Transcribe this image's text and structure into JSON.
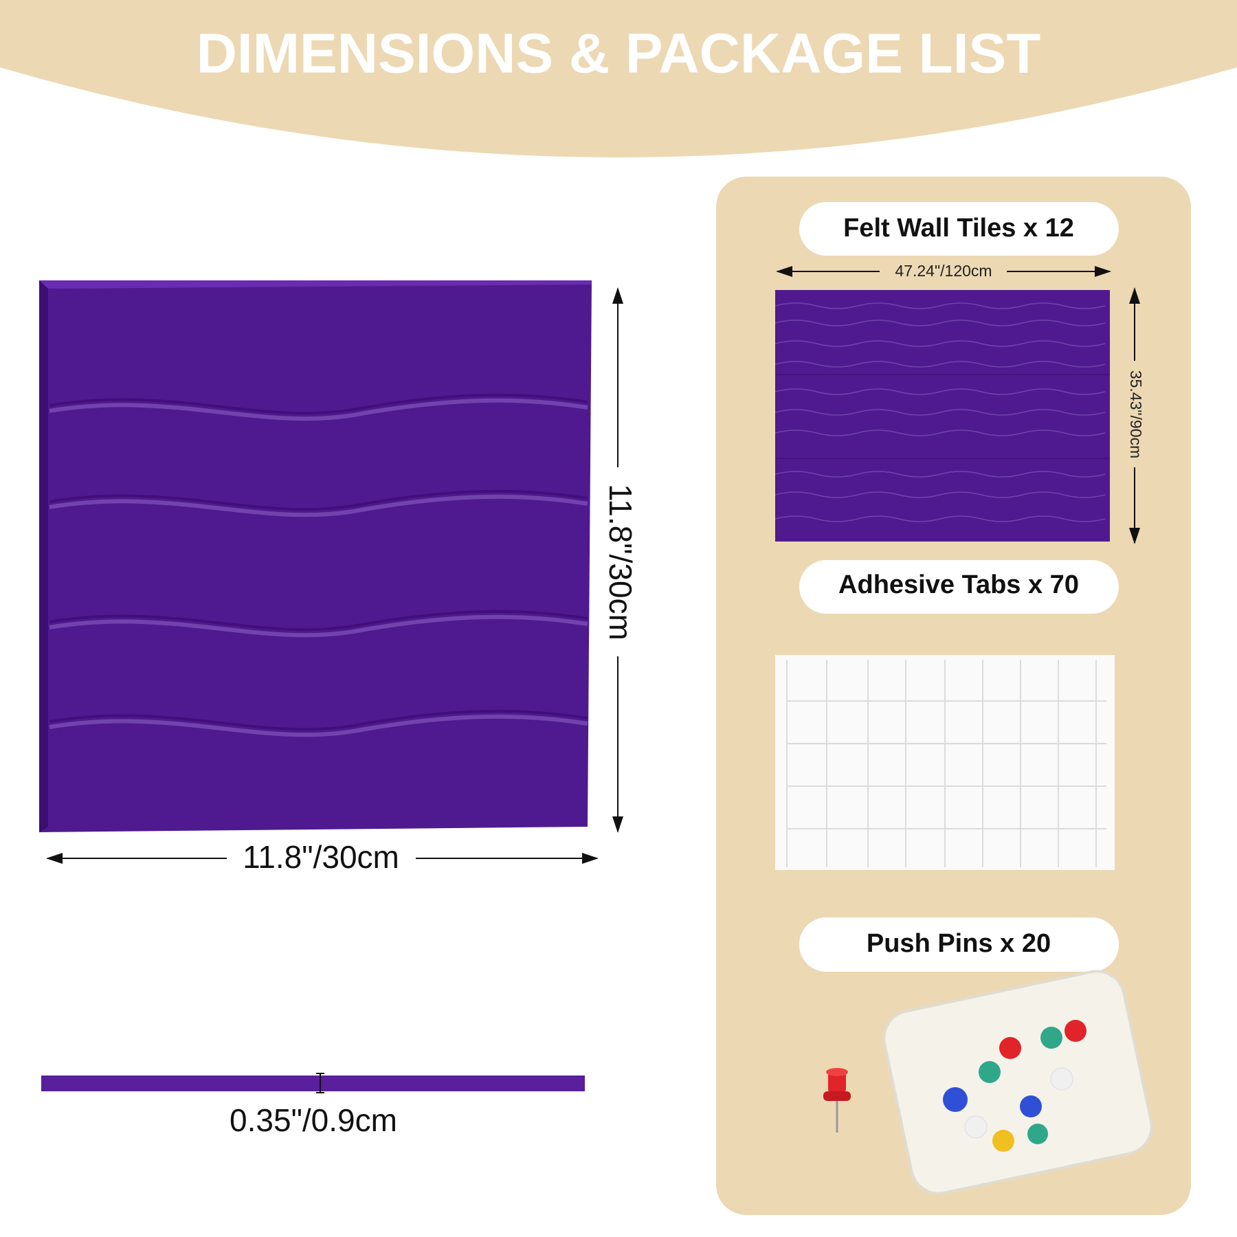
{
  "header": {
    "title": "DIMENSIONS & PACKAGE LIST"
  },
  "panel": {
    "width": "11.8\"/30cm",
    "height": "11.8\"/30cm",
    "thickness": "0.35\"/0.9cm"
  },
  "package": {
    "items": [
      {
        "label": "Felt Wall Tiles x 12",
        "width": "47.24\"/120cm",
        "height": "35.43\"/90cm"
      },
      {
        "label": "Adhesive Tabs x 70"
      },
      {
        "label": "Push Pins x 20"
      }
    ]
  }
}
